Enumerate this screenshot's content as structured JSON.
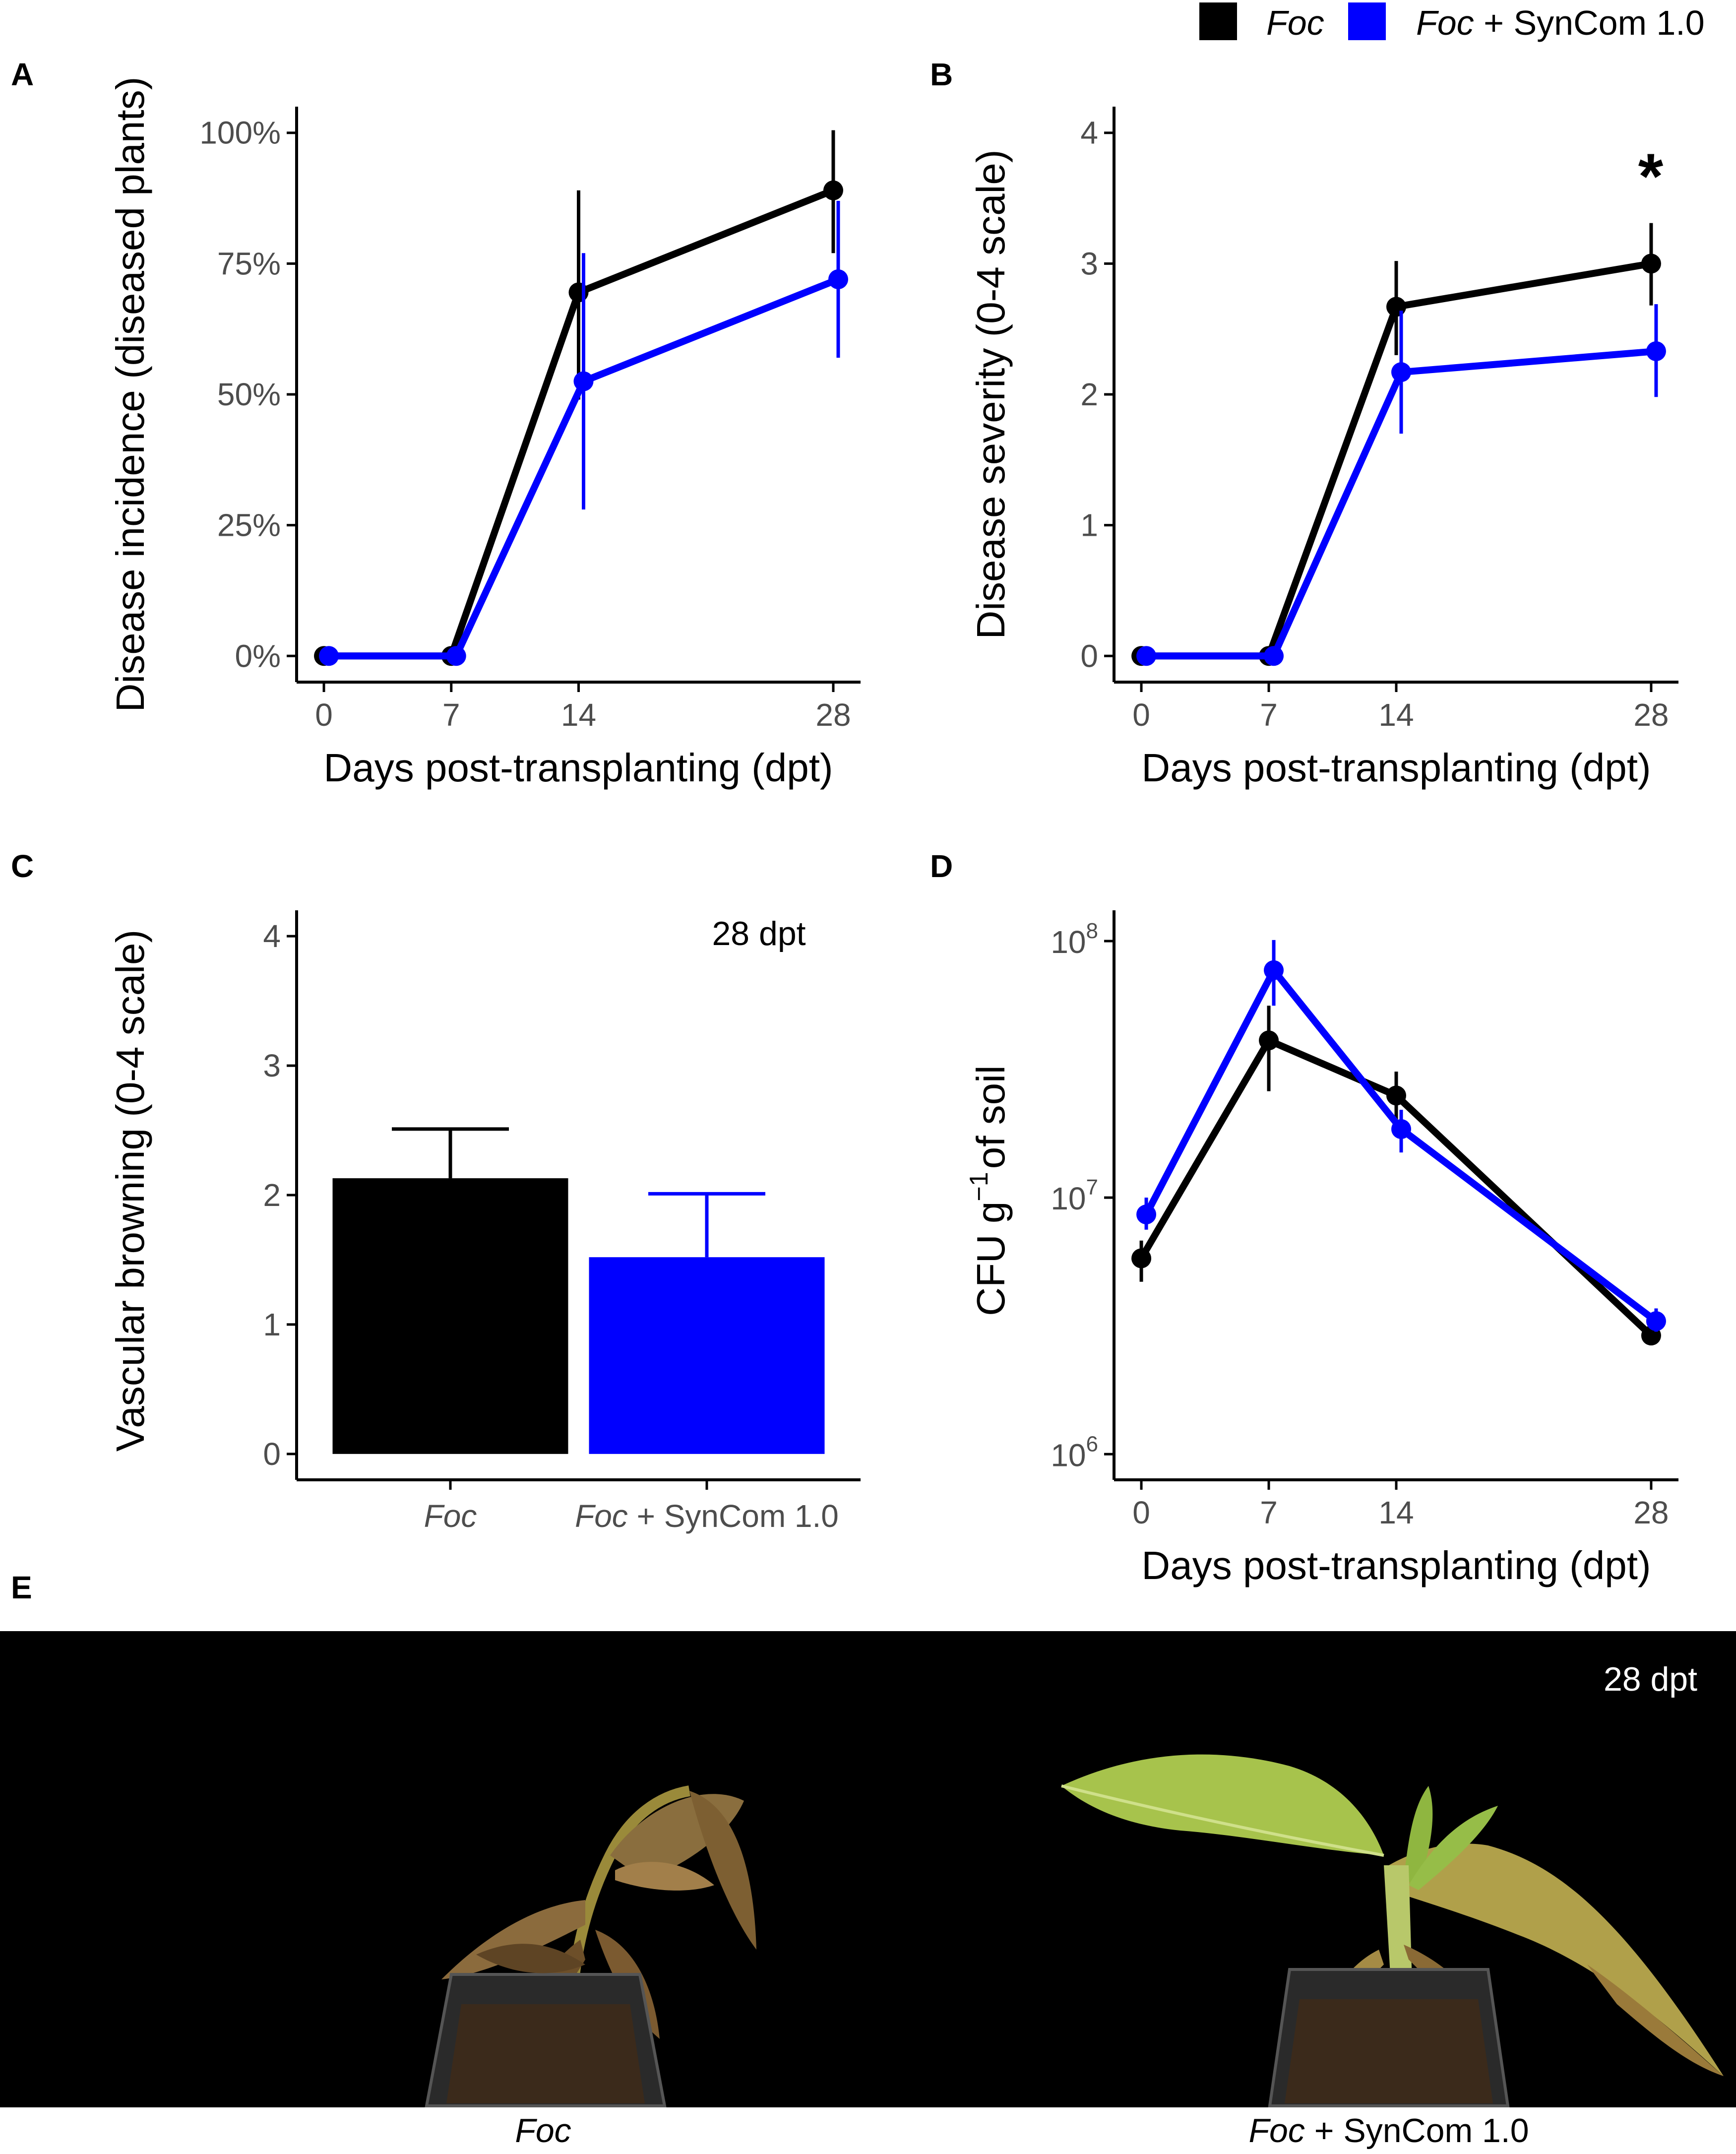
{
  "colors": {
    "foc": "#000000",
    "syncom": "#0000ff",
    "photo_bg": "#000000",
    "axis": "#000000"
  },
  "legend": {
    "foc": "Foc",
    "syncom_italic": "Foc",
    "syncom_rest": " + SynCom 1.0"
  },
  "panel_letters": {
    "a": "A",
    "b": "B",
    "c": "C",
    "d": "D",
    "e": "E"
  },
  "chart_data": [
    {
      "panel": "A",
      "type": "line",
      "x_label": "Days post-transplanting (dpt)",
      "y_label": "Disease incidence (diseased plants)",
      "x": [
        0,
        7,
        14,
        28
      ],
      "x_ticks": [
        "0",
        "7",
        "14",
        "28"
      ],
      "y_ticks": [
        "0%",
        "25%",
        "50%",
        "75%",
        "100%"
      ],
      "y_tick_values": [
        0,
        25,
        50,
        75,
        100
      ],
      "ylim": [
        -5,
        105
      ],
      "series": [
        {
          "name": "Foc",
          "values": [
            0,
            0,
            69.5,
            89
          ],
          "err_low": [
            0,
            0,
            49,
            77
          ],
          "err_high": [
            0,
            0,
            89,
            100.5
          ]
        },
        {
          "name": "Foc + SynCom 1.0",
          "values": [
            0,
            0,
            52.5,
            72
          ],
          "err_low": [
            0,
            0,
            28,
            57
          ],
          "err_high": [
            0,
            0,
            77,
            87
          ]
        }
      ]
    },
    {
      "panel": "B",
      "type": "line",
      "x_label": "Days post-transplanting (dpt)",
      "y_label": "Disease severity (0-4 scale)",
      "x": [
        0,
        7,
        14,
        28
      ],
      "x_ticks": [
        "0",
        "7",
        "14",
        "28"
      ],
      "y_ticks": [
        "0",
        "1",
        "2",
        "3",
        "4"
      ],
      "y_tick_values": [
        0,
        1,
        2,
        3,
        4
      ],
      "ylim": [
        -0.2,
        4.2
      ],
      "annotation": "*",
      "series": [
        {
          "name": "Foc",
          "values": [
            0,
            0,
            2.67,
            3.0
          ],
          "err_low": [
            0,
            0,
            2.3,
            2.68
          ],
          "err_high": [
            0,
            0,
            3.02,
            3.31
          ]
        },
        {
          "name": "Foc + SynCom 1.0",
          "values": [
            0,
            0,
            2.17,
            2.33
          ],
          "err_low": [
            0,
            0,
            1.7,
            1.98
          ],
          "err_high": [
            0,
            0,
            2.64,
            2.69
          ]
        }
      ]
    },
    {
      "panel": "C",
      "type": "bar",
      "y_label": "Vascular browning (0-4 scale)",
      "annotation": "28 dpt",
      "categories": [
        "Foc",
        "Foc + SynCom 1.0"
      ],
      "category_parts": [
        [
          "Foc",
          ""
        ],
        [
          "Foc",
          " + SynCom 1.0"
        ]
      ],
      "values": [
        2.13,
        1.52
      ],
      "err_high": [
        2.51,
        2.01
      ],
      "y_ticks": [
        "0",
        "1",
        "2",
        "3",
        "4"
      ],
      "y_tick_values": [
        0,
        1,
        2,
        3,
        4
      ],
      "ylim": [
        -0.2,
        4.2
      ]
    },
    {
      "panel": "D",
      "type": "line",
      "scale": "log10",
      "x_label": "Days post-transplanting (dpt)",
      "y_label": "CFU g-1 of soil",
      "y_label_parts": {
        "pre": "CFU g",
        "sup": "−1",
        "post": "of soil"
      },
      "x": [
        0,
        7,
        14,
        28
      ],
      "x_ticks": [
        "0",
        "7",
        "14",
        "28"
      ],
      "y_tick_exponents": [
        6,
        7,
        8
      ],
      "y_tick_base": "10",
      "ylim_log10": [
        5.9,
        8.12
      ],
      "series": [
        {
          "name": "Foc",
          "values": [
            5800000,
            41000000,
            25000000,
            2900000
          ],
          "err_low": [
            4700000,
            26000000,
            20000000,
            2700000
          ],
          "err_high": [
            6800000,
            56000000,
            31000000,
            3100000
          ]
        },
        {
          "name": "Foc + SynCom 1.0",
          "values": [
            8600000,
            77000000,
            18500000,
            3300000
          ],
          "err_low": [
            7500000,
            56000000,
            15000000,
            3000000
          ],
          "err_high": [
            10000000,
            101000000,
            22000000,
            3700000
          ]
        }
      ]
    }
  ],
  "photo": {
    "annotation": "28 dpt",
    "left_caption": "Foc",
    "right_caption_italic": "Foc",
    "right_caption_rest": " + SynCom 1.0"
  }
}
